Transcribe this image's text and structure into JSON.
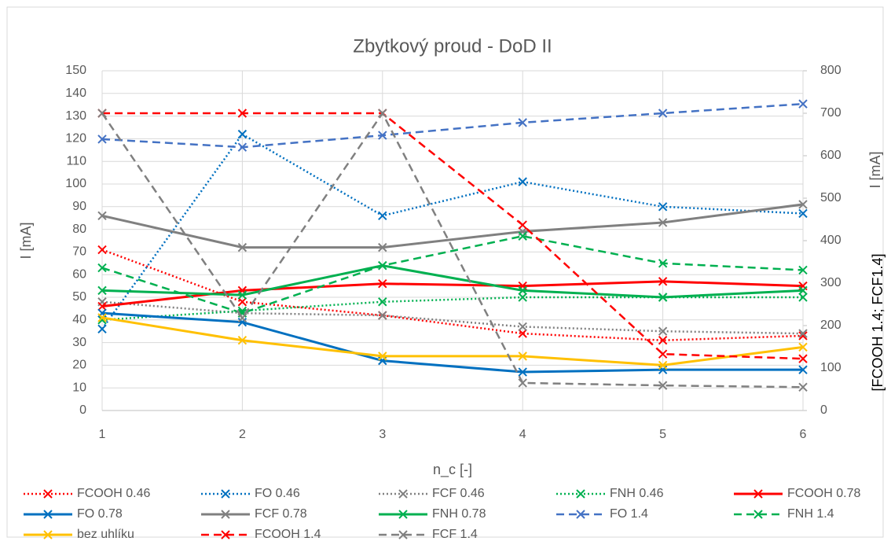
{
  "chart_data": {
    "type": "line",
    "title": "Zbytkový proud - DoD II",
    "xlabel": "n_c [-]",
    "ylabel": "I [mA]",
    "y2label": [
      "I [mA]",
      "[FCOOH 1.4; FCF1.4]"
    ],
    "x": [
      1,
      2,
      3,
      4,
      5,
      6
    ],
    "xlim": [
      1,
      6
    ],
    "xticks": [
      1,
      2,
      3,
      4,
      5,
      6
    ],
    "ylim": [
      0,
      150
    ],
    "yticks": [
      0,
      10,
      20,
      30,
      40,
      50,
      60,
      70,
      80,
      90,
      100,
      110,
      120,
      130,
      140,
      150
    ],
    "y2lim": [
      0,
      800
    ],
    "y2ticks": [
      0,
      100,
      200,
      300,
      400,
      500,
      600,
      700,
      800
    ],
    "grid": true,
    "legend": "bottom",
    "series": [
      {
        "name": "FCOOH 0.46",
        "color": "#ff0000",
        "dash": "dotted",
        "values": [
          71,
          48,
          42,
          34,
          31,
          33
        ]
      },
      {
        "name": "FO 0.46",
        "color": "#0070c0",
        "dash": "dotted",
        "values": [
          36,
          122,
          86,
          101,
          90,
          87
        ]
      },
      {
        "name": "FCF 0.46",
        "color": "#808080",
        "dash": "dotted",
        "values": [
          48,
          43,
          42,
          37,
          35,
          34
        ]
      },
      {
        "name": "FNH 0.46",
        "color": "#00b050",
        "dash": "dotted",
        "values": [
          40,
          44,
          48,
          50,
          50,
          50
        ]
      },
      {
        "name": "FCOOH 0.78",
        "color": "#ff0000",
        "dash": "solid",
        "values": [
          46,
          53,
          56,
          55,
          57,
          55
        ]
      },
      {
        "name": "FO 0.78",
        "color": "#0070c0",
        "dash": "solid",
        "values": [
          43,
          39,
          22,
          17,
          18,
          18
        ]
      },
      {
        "name": "FCF 0.78",
        "color": "#808080",
        "dash": "solid",
        "values": [
          86,
          72,
          72,
          79,
          83,
          91
        ]
      },
      {
        "name": "FNH 0.78",
        "color": "#00b050",
        "dash": "solid",
        "values": [
          53,
          51,
          64,
          53,
          50,
          53
        ]
      },
      {
        "name": "FO 1.4",
        "color": "#4472c4",
        "dash": "dashed",
        "axis": "y2",
        "values": [
          639,
          620,
          648,
          678,
          700,
          722
        ]
      },
      {
        "name": "FNH 1.4",
        "color": "#00b050",
        "dash": "dashed",
        "values": [
          63,
          43,
          64,
          77,
          65,
          62
        ]
      },
      {
        "name": "bez uhlíku",
        "color": "#ffc000",
        "dash": "solid",
        "values": [
          41,
          31,
          24,
          24,
          20,
          28
        ]
      },
      {
        "name": "FCOOH 1.4",
        "color": "#ff0000",
        "dash": "dashed",
        "axis": "y2",
        "values": [
          700,
          700,
          700,
          437,
          133,
          122
        ]
      },
      {
        "name": "FCF 1.4",
        "color": "#808080",
        "dash": "dashed",
        "axis": "y2",
        "values": [
          700,
          218,
          700,
          65,
          59,
          55
        ]
      }
    ]
  }
}
